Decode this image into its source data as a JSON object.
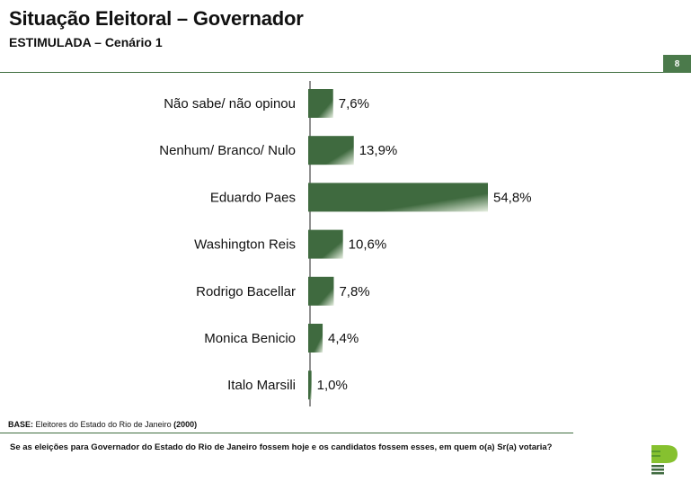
{
  "header": {
    "title": "Situação Eleitoral – Governador",
    "subtitle": "ESTIMULADA – Cenário 1",
    "page_number": "8"
  },
  "colors": {
    "bar_dark": "#3f6a3f",
    "bar_light": "#e6efe0",
    "accent": "#4b7a4b"
  },
  "chart_data": {
    "type": "bar",
    "orientation": "horizontal",
    "categories": [
      "Não sabe/ não opinou",
      "Nenhum/ Branco/ Nulo",
      "Eduardo Paes",
      "Washington Reis",
      "Rodrigo Bacellar",
      "Monica Benicio",
      "Italo Marsili"
    ],
    "values": [
      7.6,
      13.9,
      54.8,
      10.6,
      7.8,
      4.4,
      1.0
    ],
    "value_labels": [
      "7,6%",
      "13,9%",
      "54,8%",
      "10,6%",
      "7,8%",
      "4,4%",
      "1,0%"
    ],
    "xlim": [
      0,
      54.8
    ],
    "grid": false,
    "legend": "none"
  },
  "footer": {
    "base_label": "BASE:",
    "base_text": "Eleitores do Estado do Rio de Janeiro",
    "base_count": "(2000)",
    "question": "Se as eleições para Governador do Estado do Rio de Janeiro fossem hoje e os candidatos fossem esses, em quem o(a) Sr(a) votaria?"
  },
  "logo": {
    "icon": "company-logo-icon"
  }
}
